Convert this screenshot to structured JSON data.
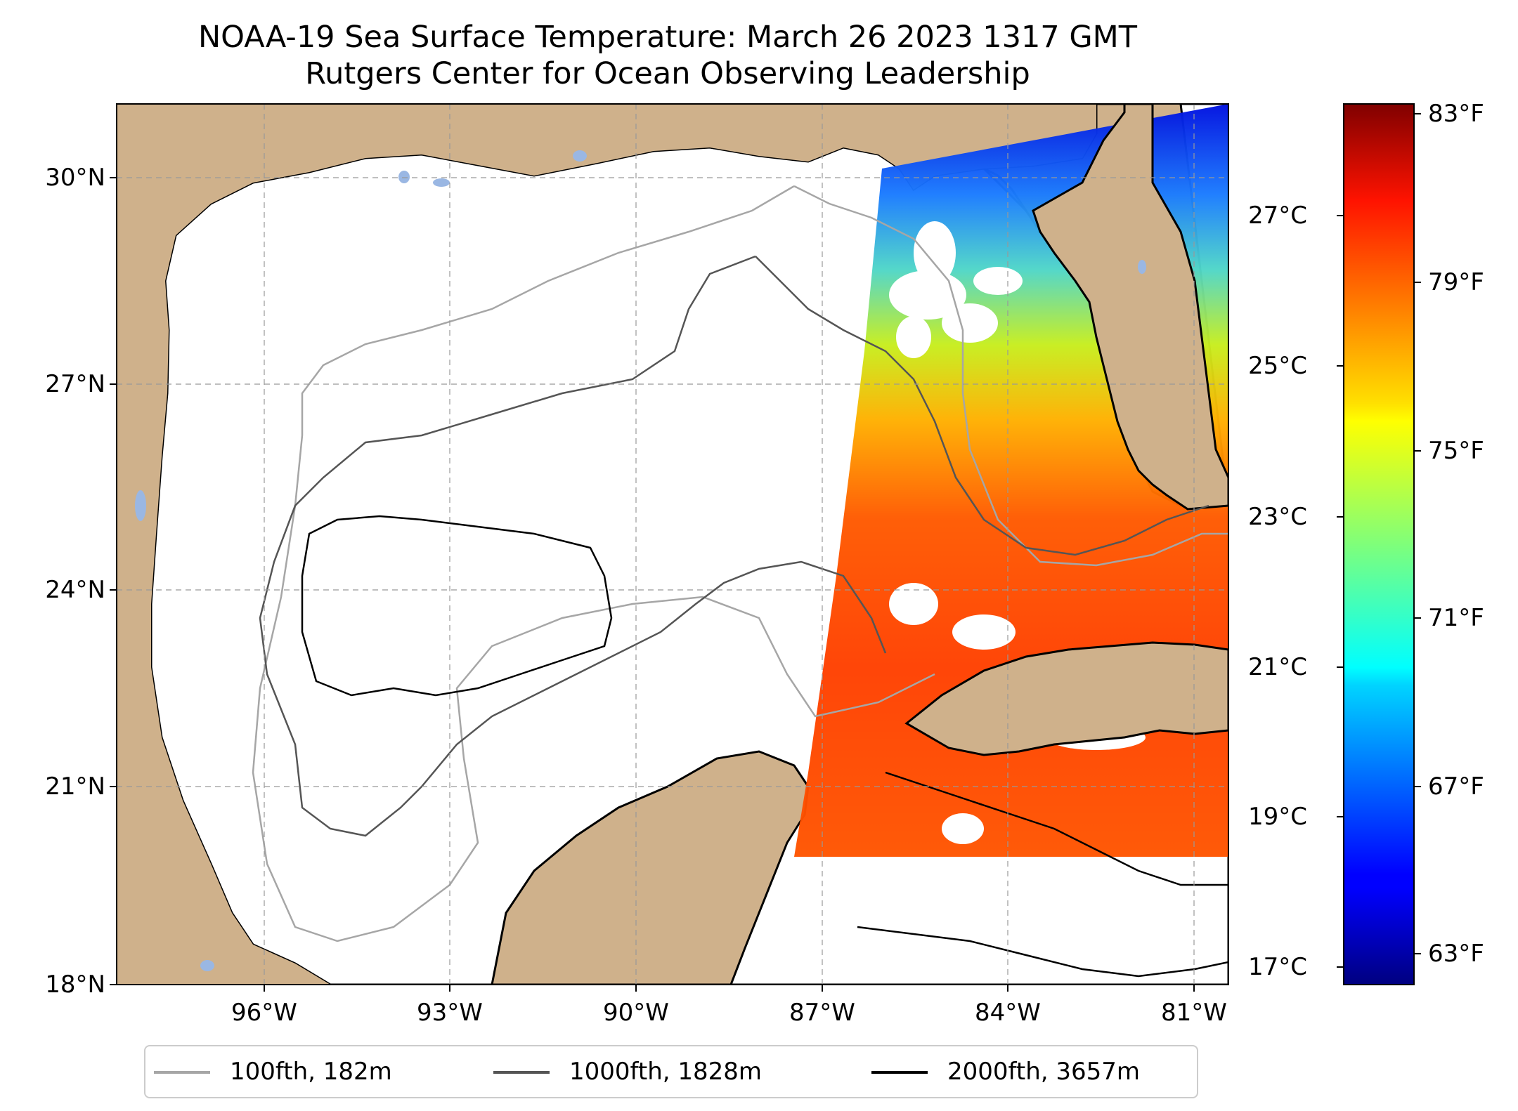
{
  "title": {
    "line1": "NOAA-19 Sea Surface Temperature: March 26 2023 1317 GMT",
    "line2": "Rutgers Center for Ocean Observing Leadership"
  },
  "map": {
    "extent": {
      "lon_min": -98.3,
      "lon_max": -80.5,
      "lat_min": 18.0,
      "lat_max": 31.1
    },
    "lat_ticks": [
      {
        "value": 30,
        "label": "30°N"
      },
      {
        "value": 27,
        "label": "27°N"
      },
      {
        "value": 24,
        "label": "24°N"
      },
      {
        "value": 21,
        "label": "21°N"
      },
      {
        "value": 18,
        "label": "18°N"
      }
    ],
    "lon_ticks": [
      {
        "value": -96,
        "label": "96°W"
      },
      {
        "value": -93,
        "label": "93°W"
      },
      {
        "value": -90,
        "label": "90°W"
      },
      {
        "value": -87,
        "label": "87°W"
      },
      {
        "value": -84,
        "label": "84°W"
      },
      {
        "value": -81,
        "label": "81°W"
      }
    ],
    "gridlines": true,
    "land_color": "#cfb18b",
    "water_color": "#ffffff",
    "lake_color": "#9ab7e3"
  },
  "colorbar": {
    "colormap": "jet",
    "celsius_labels": [
      {
        "value": 27,
        "label": "27°C"
      },
      {
        "value": 25,
        "label": "25°C"
      },
      {
        "value": 23,
        "label": "23°C"
      },
      {
        "value": 21,
        "label": "21°C"
      },
      {
        "value": 19,
        "label": "19°C"
      },
      {
        "value": 17,
        "label": "17°C"
      }
    ],
    "fahrenheit_labels": [
      {
        "value": 83,
        "label": "83°F"
      },
      {
        "value": 79,
        "label": "79°F"
      },
      {
        "value": 75,
        "label": "75°F"
      },
      {
        "value": 71,
        "label": "71°F"
      },
      {
        "value": 67,
        "label": "67°F"
      },
      {
        "value": 63,
        "label": "63°F"
      }
    ]
  },
  "legend": {
    "items": [
      {
        "label": "100fth, 182m",
        "color": "#a6a6a6"
      },
      {
        "label": "1000fth, 1828m",
        "color": "#555555"
      },
      {
        "label": "2000fth, 3657m",
        "color": "#000000"
      }
    ]
  }
}
